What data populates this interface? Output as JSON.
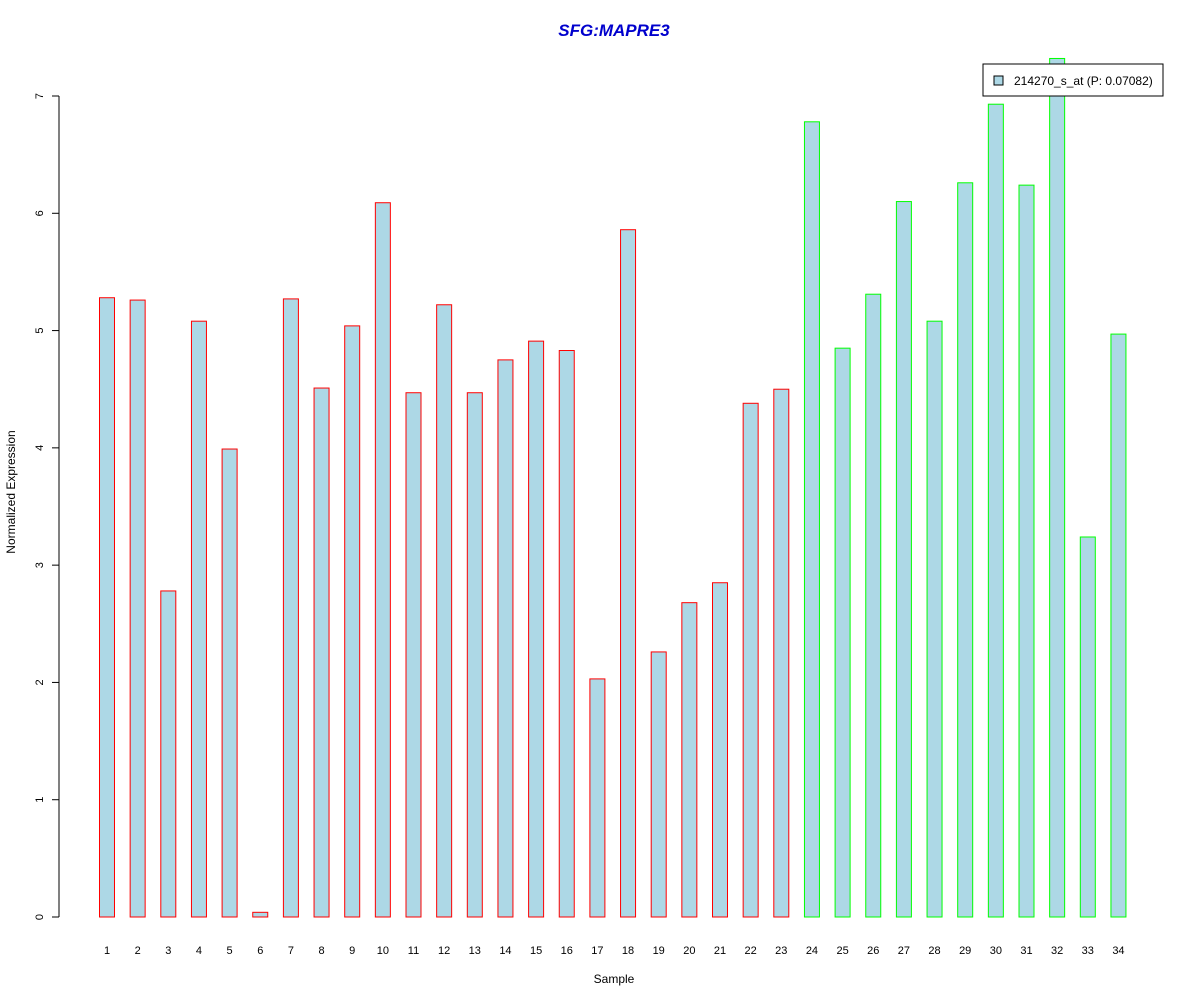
{
  "chart_data": {
    "type": "bar",
    "title": "SFG:MAPRE3",
    "xlabel": "Sample",
    "ylabel": "Normalized Expression",
    "ylim": [
      0,
      7
    ],
    "yticks": [
      0,
      1,
      2,
      3,
      4,
      5,
      6,
      7
    ],
    "categories": [
      "1",
      "2",
      "3",
      "4",
      "5",
      "6",
      "7",
      "8",
      "9",
      "10",
      "11",
      "12",
      "13",
      "14",
      "15",
      "16",
      "17",
      "18",
      "19",
      "20",
      "21",
      "22",
      "23",
      "24",
      "25",
      "26",
      "27",
      "28",
      "29",
      "30",
      "31",
      "32",
      "33",
      "34"
    ],
    "series": [
      {
        "name": "214270_s_at (P: 0.07082)",
        "values": [
          5.28,
          5.26,
          2.78,
          5.08,
          3.99,
          0.04,
          5.27,
          4.51,
          5.04,
          6.09,
          4.47,
          5.22,
          4.47,
          4.75,
          4.91,
          4.83,
          2.03,
          5.86,
          2.26,
          2.68,
          2.85,
          4.38,
          4.5,
          6.78,
          4.85,
          5.31,
          6.1,
          5.08,
          6.26,
          6.93,
          6.24,
          7.32,
          3.24,
          4.97
        ]
      }
    ],
    "groups": [
      {
        "range": [
          1,
          23
        ],
        "border_color": "#ff0000"
      },
      {
        "range": [
          24,
          34
        ],
        "border_color": "#00ff00"
      }
    ],
    "colors": {
      "bar_fill": "#add8e6",
      "title": "#0000cd",
      "axis": "#000000"
    },
    "legend": {
      "position": "top-right",
      "entries": [
        "214270_s_at (P: 0.07082)"
      ]
    },
    "grid": false
  }
}
